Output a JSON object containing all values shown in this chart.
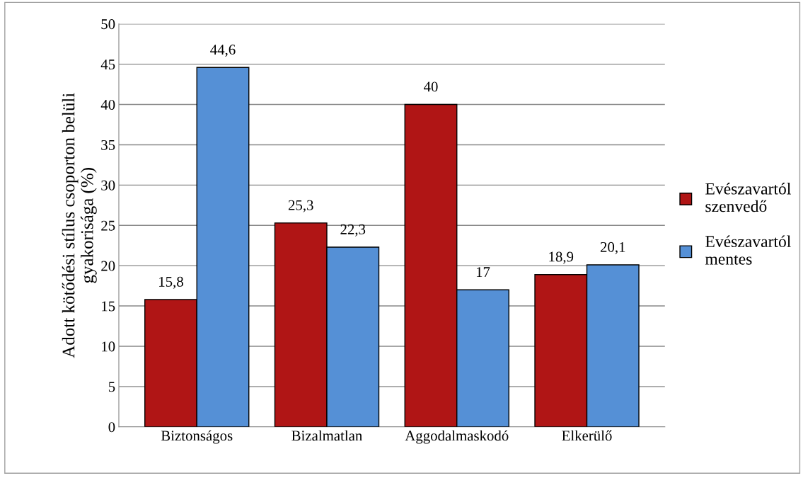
{
  "chart_data": {
    "type": "bar",
    "ylabel": "Adott kötődési stílus csoporton belüli\ngyakorisága (%)",
    "categories": [
      "Biztonságos",
      "Bizalmatlan",
      "Aggodalmaskodó",
      "Elkerülő"
    ],
    "series": [
      {
        "name": "Evészavartól\nszenvedő",
        "color": "#b01515",
        "values": [
          15.8,
          25.3,
          40,
          18.9
        ],
        "value_labels": [
          "15,8",
          "25,3",
          "40",
          "18,9"
        ]
      },
      {
        "name": "Evészavartól\nmentes",
        "color": "#5590d6",
        "values": [
          44.6,
          22.3,
          17,
          20.1
        ],
        "value_labels": [
          "44,6",
          "22,3",
          "17",
          "20,1"
        ]
      }
    ],
    "ylim": [
      0,
      50
    ],
    "yticks": [
      0,
      5,
      10,
      15,
      20,
      25,
      30,
      35,
      40,
      45,
      50
    ],
    "grid": "y",
    "legend": "right"
  }
}
